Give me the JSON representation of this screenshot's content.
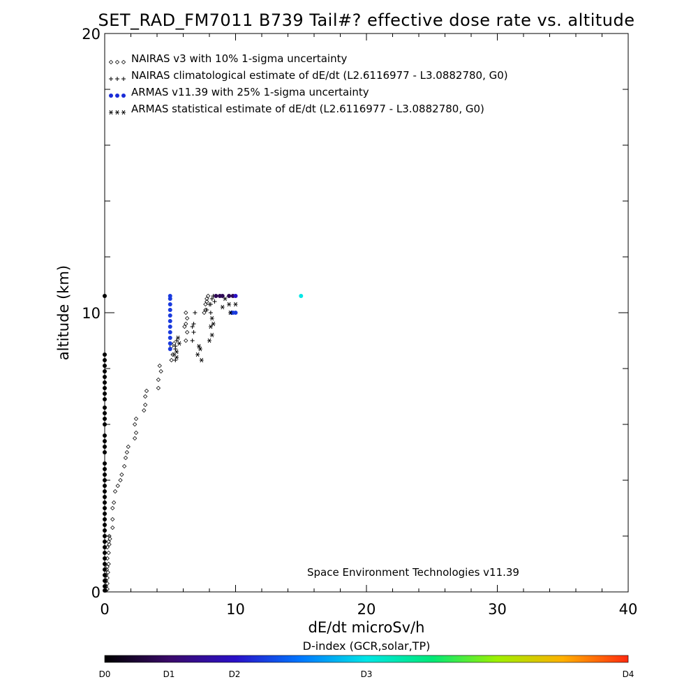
{
  "chart_data": {
    "type": "scatter",
    "title": "SET_RAD_FM7011  B739 Tail#? effective dose rate vs. altitude",
    "xlabel": "dE/dt microSv/h",
    "ylabel": "altitude (km)",
    "xlim": [
      0,
      40
    ],
    "ylim": [
      0,
      20
    ],
    "x_ticks": [
      "0",
      "10",
      "20",
      "30",
      "40"
    ],
    "y_ticks": [
      "0",
      "10",
      "20"
    ],
    "legend_placement": "top-left",
    "legend": [
      {
        "symbol": "◇◇◇",
        "label": "NAIRAS v3 with 10% 1-sigma uncertainty"
      },
      {
        "symbol": "+++",
        "label": "NAIRAS climatological estimate of dE/dt (L2.6116977 - L3.0882780, G0)"
      },
      {
        "symbol": "●●●",
        "label": "ARMAS v11.39 with 25% 1-sigma uncertainty"
      },
      {
        "symbol": "***",
        "label": "ARMAS statistical estimate of dE/dt (L2.6116977 - L3.0882780, G0)"
      }
    ],
    "annotation": "Space Environment Technologies v11.39",
    "colorbar": {
      "title": "D-index (GCR,solar,TP)",
      "labels": [
        "D0",
        "D1",
        "D2",
        "D3",
        "D4"
      ],
      "label_values": [
        0,
        0.25,
        0.5,
        1.0,
        2.0
      ],
      "range": [
        0,
        2
      ]
    },
    "series": [
      {
        "name": "NAIRAS v3 with 10% 1-sigma uncertainty",
        "marker": "diamond",
        "points": [
          [
            0.1,
            0.05
          ],
          [
            0.2,
            0.1
          ],
          [
            0.1,
            0.2
          ],
          [
            0.2,
            0.3
          ],
          [
            0.1,
            0.4
          ],
          [
            0.2,
            0.5
          ],
          [
            0.1,
            0.6
          ],
          [
            0.25,
            0.7
          ],
          [
            0.15,
            0.8
          ],
          [
            0.2,
            0.9
          ],
          [
            0.3,
            1.0
          ],
          [
            0.2,
            1.2
          ],
          [
            0.3,
            1.4
          ],
          [
            0.2,
            1.6
          ],
          [
            0.35,
            1.7
          ],
          [
            0.3,
            1.8
          ],
          [
            0.4,
            1.9
          ],
          [
            0.35,
            2.0
          ],
          [
            0.6,
            2.3
          ],
          [
            0.6,
            2.6
          ],
          [
            0.6,
            3.0
          ],
          [
            0.7,
            3.2
          ],
          [
            0.8,
            3.6
          ],
          [
            1.0,
            3.8
          ],
          [
            1.2,
            4.0
          ],
          [
            1.3,
            4.2
          ],
          [
            1.5,
            4.5
          ],
          [
            1.6,
            4.8
          ],
          [
            1.7,
            5.0
          ],
          [
            1.8,
            5.2
          ],
          [
            2.3,
            5.5
          ],
          [
            2.4,
            5.7
          ],
          [
            2.3,
            6.0
          ],
          [
            2.4,
            6.2
          ],
          [
            3.0,
            6.5
          ],
          [
            3.1,
            6.7
          ],
          [
            3.1,
            7.0
          ],
          [
            3.2,
            7.2
          ],
          [
            4.1,
            7.3
          ],
          [
            4.1,
            7.6
          ],
          [
            4.3,
            7.9
          ],
          [
            4.2,
            8.1
          ],
          [
            5.1,
            8.3
          ],
          [
            5.2,
            8.5
          ],
          [
            5.1,
            8.8
          ],
          [
            5.3,
            8.9
          ],
          [
            6.2,
            9.0
          ],
          [
            6.3,
            9.3
          ],
          [
            6.1,
            9.5
          ],
          [
            6.2,
            9.6
          ],
          [
            6.3,
            9.8
          ],
          [
            6.2,
            10.0
          ],
          [
            7.6,
            10.0
          ],
          [
            7.7,
            10.3
          ],
          [
            7.8,
            10.5
          ],
          [
            7.9,
            10.6
          ],
          [
            7.7,
            10.1
          ],
          [
            7.8,
            10.4
          ]
        ]
      },
      {
        "name": "NAIRAS climatological estimate of dE/dt (L2.6116977 - L3.0882780, G0)",
        "marker": "plus",
        "points": [
          [
            5.4,
            8.3
          ],
          [
            5.3,
            8.5
          ],
          [
            5.4,
            8.8
          ],
          [
            5.5,
            9.0
          ],
          [
            5.4,
            8.7
          ],
          [
            6.7,
            9.0
          ],
          [
            6.8,
            9.3
          ],
          [
            6.8,
            9.6
          ],
          [
            6.9,
            10.0
          ],
          [
            6.7,
            9.5
          ],
          [
            7.8,
            10.1
          ],
          [
            8.0,
            10.3
          ],
          [
            8.1,
            10.3
          ],
          [
            8.2,
            10.5
          ],
          [
            8.3,
            10.6
          ],
          [
            8.1,
            10.0
          ],
          [
            8.4,
            10.4
          ]
        ]
      },
      {
        "name": "ARMAS v11.39 with 25% 1-sigma uncertainty",
        "marker": "filled-circle",
        "points": [
          [
            0,
            0.05,
            0.0
          ],
          [
            0,
            0.2,
            0.0
          ],
          [
            0,
            0.4,
            0.0
          ],
          [
            0,
            0.6,
            0.0
          ],
          [
            0,
            0.8,
            0.0
          ],
          [
            0,
            1.0,
            0.0
          ],
          [
            0,
            1.2,
            0.0
          ],
          [
            0,
            1.4,
            0.0
          ],
          [
            0,
            1.6,
            0.0
          ],
          [
            0,
            1.8,
            0.0
          ],
          [
            0,
            2.0,
            0.0
          ],
          [
            0,
            2.2,
            0.0
          ],
          [
            0,
            2.4,
            0.0
          ],
          [
            0,
            2.6,
            0.0
          ],
          [
            0,
            2.8,
            0.0
          ],
          [
            0,
            3.0,
            0.0
          ],
          [
            0,
            3.2,
            0.0
          ],
          [
            0,
            3.4,
            0.0
          ],
          [
            0,
            3.6,
            0.0
          ],
          [
            0,
            3.8,
            0.0
          ],
          [
            0,
            4.0,
            0.0
          ],
          [
            0,
            4.2,
            0.0
          ],
          [
            0,
            4.4,
            0.0
          ],
          [
            0,
            4.6,
            0.0
          ],
          [
            0,
            5.0,
            0.0
          ],
          [
            0,
            5.2,
            0.0
          ],
          [
            0,
            5.4,
            0.0
          ],
          [
            0,
            5.6,
            0.0
          ],
          [
            0,
            6.0,
            0.0
          ],
          [
            0,
            6.2,
            0.0
          ],
          [
            0,
            6.4,
            0.0
          ],
          [
            0,
            6.6,
            0.0
          ],
          [
            0,
            6.9,
            0.0
          ],
          [
            0,
            7.1,
            0.0
          ],
          [
            0,
            7.3,
            0.0
          ],
          [
            0,
            7.5,
            0.0
          ],
          [
            0,
            7.7,
            0.0
          ],
          [
            0,
            7.9,
            0.0
          ],
          [
            0,
            8.1,
            0.0
          ],
          [
            0,
            8.3,
            0.0
          ],
          [
            0,
            8.5,
            0.0
          ],
          [
            0,
            10.6,
            0.0
          ],
          [
            5,
            8.7,
            0.3
          ],
          [
            5,
            8.9,
            0.3
          ],
          [
            5,
            9.1,
            0.3
          ],
          [
            5,
            9.3,
            0.3
          ],
          [
            5,
            9.5,
            0.3
          ],
          [
            5,
            9.7,
            0.3
          ],
          [
            5,
            9.9,
            0.3
          ],
          [
            5,
            10.1,
            0.3
          ],
          [
            5,
            10.3,
            0.3
          ],
          [
            5,
            10.5,
            0.3
          ],
          [
            5,
            10.6,
            0.3
          ],
          [
            8.5,
            10.6,
            0.1
          ],
          [
            8.8,
            10.6,
            0.1
          ],
          [
            9.0,
            10.6,
            0.1
          ],
          [
            9.5,
            10.6,
            0.1
          ],
          [
            9.8,
            10.6,
            0.1
          ],
          [
            10,
            10.6,
            0.25
          ],
          [
            10,
            10.0,
            0.3
          ],
          [
            9.8,
            10.0,
            0.3
          ],
          [
            9.7,
            10.0,
            0.3
          ],
          [
            15,
            10.6,
            0.5
          ]
        ]
      },
      {
        "name": "ARMAS statistical estimate of dE/dt (L2.6116977 - L3.0882780, G0)",
        "marker": "asterisk",
        "points": [
          [
            5.5,
            8.6
          ],
          [
            5.7,
            8.9
          ],
          [
            5.6,
            9.1
          ],
          [
            5.5,
            8.4
          ],
          [
            7.1,
            8.5
          ],
          [
            7.4,
            8.3
          ],
          [
            7.2,
            8.8
          ],
          [
            7.3,
            8.7
          ],
          [
            8.0,
            9.0
          ],
          [
            8.2,
            9.2
          ],
          [
            8.1,
            9.5
          ],
          [
            8.3,
            9.6
          ],
          [
            8.2,
            9.8
          ],
          [
            9.0,
            10.2
          ],
          [
            9.5,
            10.3
          ],
          [
            9.6,
            10.0
          ],
          [
            10.0,
            10.3
          ],
          [
            9.2,
            10.5
          ]
        ]
      }
    ]
  }
}
